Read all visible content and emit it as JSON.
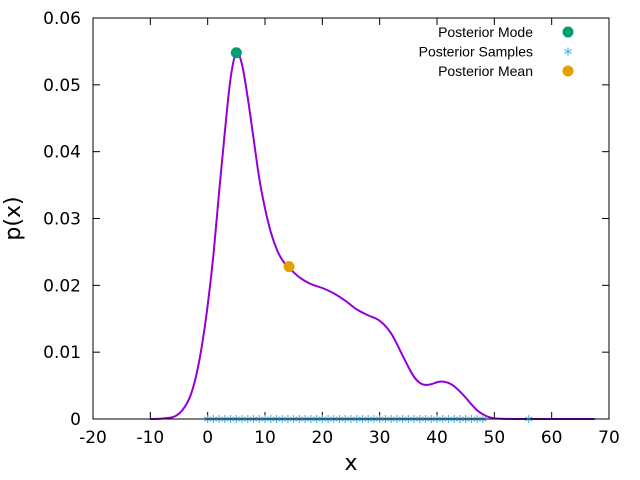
{
  "chart_data": {
    "type": "line",
    "xlabel": "x",
    "ylabel": "p(x)",
    "xlim": [
      -20,
      70
    ],
    "ylim": [
      0,
      0.06
    ],
    "grid": false,
    "legend_position": "top-right",
    "x_ticks": [
      -20,
      -10,
      0,
      10,
      20,
      30,
      40,
      50,
      60,
      70
    ],
    "x_tick_labels": [
      "-20",
      "-10",
      "0",
      "10",
      "20",
      "30",
      "40",
      "50",
      "60",
      "70"
    ],
    "y_ticks": [
      0,
      0.01,
      0.02,
      0.03,
      0.04,
      0.05,
      0.06
    ],
    "y_tick_labels": [
      "0",
      "0.01",
      "0.02",
      "0.03",
      "0.04",
      "0.05",
      "0.06"
    ],
    "density": {
      "color": "#9400d3",
      "x": [
        -10,
        -8,
        -6,
        -5,
        -4,
        -3,
        -2,
        -1,
        0,
        1,
        2,
        3,
        4,
        5,
        6,
        7,
        8,
        9,
        10,
        11,
        12,
        13,
        14,
        16,
        18,
        20,
        22,
        24,
        26,
        28,
        30,
        32,
        34,
        35,
        36,
        37,
        38,
        39,
        40,
        41,
        42,
        43,
        44,
        45,
        46,
        47,
        48,
        49,
        50,
        52,
        54,
        56,
        60,
        64,
        67.5
      ],
      "y": [
        0,
        5e-05,
        0.0003,
        0.0008,
        0.0018,
        0.0035,
        0.0065,
        0.011,
        0.017,
        0.0245,
        0.034,
        0.043,
        0.051,
        0.0548,
        0.053,
        0.048,
        0.042,
        0.036,
        0.0315,
        0.028,
        0.0255,
        0.0238,
        0.0228,
        0.0212,
        0.0202,
        0.0196,
        0.0188,
        0.0177,
        0.0164,
        0.0155,
        0.0147,
        0.0128,
        0.0095,
        0.0078,
        0.0063,
        0.0054,
        0.0051,
        0.0052,
        0.0055,
        0.0056,
        0.0054,
        0.0049,
        0.0041,
        0.0032,
        0.0022,
        0.0013,
        0.0007,
        0.0003,
        0.0001,
        2e-05,
        0,
        0,
        0,
        0,
        0
      ]
    },
    "series": [
      {
        "name": "Posterior Mode",
        "color": "#009e73",
        "marker": "circle",
        "x": [
          5
        ],
        "y": [
          0.0548
        ]
      },
      {
        "name": "Posterior Samples",
        "color": "#56b4e9",
        "marker": "asterisk",
        "x": [
          0,
          1,
          2,
          3,
          4,
          5,
          6,
          7,
          8,
          9,
          10,
          11,
          12,
          13,
          14,
          15,
          16,
          17,
          18,
          19,
          20,
          21,
          22,
          23,
          24,
          25,
          26,
          27,
          28,
          29,
          30,
          31,
          32,
          33,
          34,
          35,
          36,
          37,
          38,
          39,
          40,
          41,
          42,
          43,
          44,
          45,
          46,
          47,
          48,
          56
        ],
        "y": [
          0,
          0,
          0,
          0,
          0,
          0,
          0,
          0,
          0,
          0,
          0,
          0,
          0,
          0,
          0,
          0,
          0,
          0,
          0,
          0,
          0,
          0,
          0,
          0,
          0,
          0,
          0,
          0,
          0,
          0,
          0,
          0,
          0,
          0,
          0,
          0,
          0,
          0,
          0,
          0,
          0,
          0,
          0,
          0,
          0,
          0,
          0,
          0,
          0,
          0
        ]
      },
      {
        "name": "Posterior Mean",
        "color": "#e69f00",
        "marker": "circle",
        "x": [
          14.2
        ],
        "y": [
          0.0228
        ]
      }
    ]
  }
}
